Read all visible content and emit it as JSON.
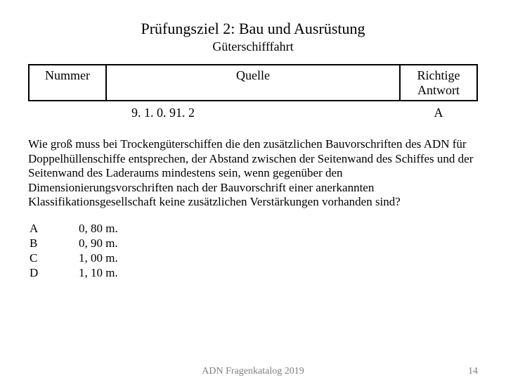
{
  "title": "Prüfungsziel 2: Bau und Ausrüstung",
  "subtitle": "Güterschifffahrt",
  "table": {
    "headers": {
      "number": "Nummer",
      "source": "Quelle",
      "answer": "Richtige Antwort"
    },
    "row": {
      "number": "",
      "source": "9. 1. 0. 91. 2",
      "answer": "A"
    }
  },
  "question_text": "Wie groß muss bei Trockengüterschiffen die den zusätzlichen Bauvorschriften des ADN für Doppelhüllenschiffe entsprechen, der Abstand zwischen der Seitenwand des Schiffes und der Seitenwand des Laderaums mindestens sein, wenn gegenüber den Dimensionierungsvorschriften nach der Bauvorschrift einer anerkannten Klassifikationsgesellschaft keine zusätzlichen Verstärkungen vorhanden sind?",
  "options": [
    {
      "key": "A",
      "value": "0, 80 m."
    },
    {
      "key": "B",
      "value": "0, 90 m."
    },
    {
      "key": "C",
      "value": "1, 00 m."
    },
    {
      "key": "D",
      "value": "1, 10 m."
    }
  ],
  "footer": {
    "center": "ADN Fragenkatalog 2019",
    "page": "14"
  },
  "colors": {
    "text": "#000000",
    "footer": "#7f7f7f",
    "background": "#ffffff",
    "border": "#000000"
  }
}
